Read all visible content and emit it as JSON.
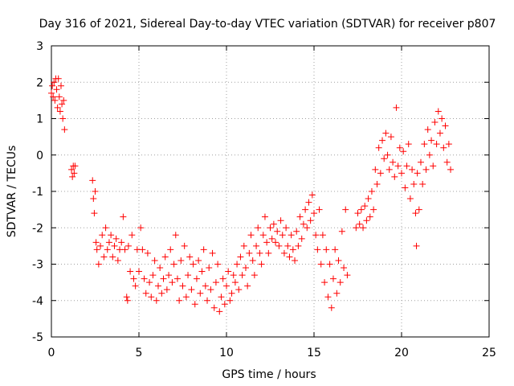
{
  "chart_data": {
    "type": "scatter",
    "title": "Day 316 of 2021, Sidereal Day-to-day VTEC variation (SDTVAR) for receiver p807",
    "xlabel": "GPS time / hours",
    "ylabel": "SDTVAR / TECUs",
    "xlim": [
      0,
      25
    ],
    "ylim": [
      -5,
      3
    ],
    "xticks": [
      0,
      5,
      10,
      15,
      20,
      25
    ],
    "yticks": [
      -5,
      -4,
      -3,
      -2,
      -1,
      0,
      1,
      2,
      3
    ],
    "grid": true,
    "marker": "+",
    "color": "#ff0000",
    "series": [
      {
        "name": "SDTVAR",
        "points": [
          [
            0.0,
            1.7
          ],
          [
            0.05,
            1.9
          ],
          [
            0.1,
            1.6
          ],
          [
            0.15,
            2.0
          ],
          [
            0.2,
            1.5
          ],
          [
            0.25,
            2.1
          ],
          [
            0.3,
            1.8
          ],
          [
            0.35,
            1.3
          ],
          [
            0.4,
            2.1
          ],
          [
            0.45,
            1.6
          ],
          [
            0.5,
            1.2
          ],
          [
            0.55,
            1.9
          ],
          [
            0.6,
            1.4
          ],
          [
            0.65,
            1.0
          ],
          [
            0.7,
            1.5
          ],
          [
            0.75,
            0.7
          ],
          [
            1.15,
            -0.4
          ],
          [
            1.2,
            -0.6
          ],
          [
            1.25,
            -0.3
          ],
          [
            1.3,
            -0.5
          ],
          [
            1.35,
            -0.3
          ],
          [
            2.35,
            -0.7
          ],
          [
            2.4,
            -1.2
          ],
          [
            2.45,
            -1.6
          ],
          [
            2.5,
            -1.0
          ],
          [
            2.55,
            -2.4
          ],
          [
            2.6,
            -2.6
          ],
          [
            2.7,
            -3.0
          ],
          [
            2.8,
            -2.5
          ],
          [
            2.9,
            -2.2
          ],
          [
            3.0,
            -2.8
          ],
          [
            3.1,
            -2.0
          ],
          [
            3.2,
            -2.6
          ],
          [
            3.3,
            -2.4
          ],
          [
            3.4,
            -2.2
          ],
          [
            3.5,
            -2.8
          ],
          [
            3.6,
            -2.5
          ],
          [
            3.7,
            -2.3
          ],
          [
            3.8,
            -2.9
          ],
          [
            3.9,
            -2.6
          ],
          [
            4.0,
            -2.4
          ],
          [
            4.1,
            -1.7
          ],
          [
            4.2,
            -2.6
          ],
          [
            4.3,
            -3.9
          ],
          [
            4.35,
            -4.0
          ],
          [
            4.4,
            -2.5
          ],
          [
            4.5,
            -3.2
          ],
          [
            4.6,
            -2.2
          ],
          [
            4.7,
            -3.4
          ],
          [
            4.8,
            -3.6
          ],
          [
            4.9,
            -2.6
          ],
          [
            5.0,
            -3.2
          ],
          [
            5.1,
            -2.0
          ],
          [
            5.2,
            -2.6
          ],
          [
            5.3,
            -3.4
          ],
          [
            5.4,
            -3.8
          ],
          [
            5.5,
            -2.7
          ],
          [
            5.6,
            -3.5
          ],
          [
            5.7,
            -3.9
          ],
          [
            5.8,
            -3.3
          ],
          [
            5.9,
            -2.9
          ],
          [
            6.0,
            -4.0
          ],
          [
            6.1,
            -3.6
          ],
          [
            6.2,
            -3.1
          ],
          [
            6.3,
            -3.8
          ],
          [
            6.4,
            -3.4
          ],
          [
            6.5,
            -2.8
          ],
          [
            6.6,
            -3.7
          ],
          [
            6.7,
            -3.3
          ],
          [
            6.8,
            -2.6
          ],
          [
            6.9,
            -3.5
          ],
          [
            7.0,
            -3.0
          ],
          [
            7.1,
            -2.2
          ],
          [
            7.2,
            -3.4
          ],
          [
            7.3,
            -4.0
          ],
          [
            7.4,
            -2.9
          ],
          [
            7.5,
            -3.6
          ],
          [
            7.6,
            -2.5
          ],
          [
            7.7,
            -3.9
          ],
          [
            7.8,
            -3.3
          ],
          [
            7.9,
            -2.8
          ],
          [
            8.0,
            -3.7
          ],
          [
            8.1,
            -3.0
          ],
          [
            8.2,
            -4.1
          ],
          [
            8.3,
            -3.4
          ],
          [
            8.4,
            -2.9
          ],
          [
            8.5,
            -3.8
          ],
          [
            8.6,
            -3.2
          ],
          [
            8.7,
            -2.6
          ],
          [
            8.8,
            -3.6
          ],
          [
            8.9,
            -4.0
          ],
          [
            9.0,
            -3.1
          ],
          [
            9.1,
            -3.7
          ],
          [
            9.2,
            -2.7
          ],
          [
            9.3,
            -4.2
          ],
          [
            9.4,
            -3.5
          ],
          [
            9.5,
            -3.0
          ],
          [
            9.6,
            -4.3
          ],
          [
            9.7,
            -3.9
          ],
          [
            9.8,
            -3.4
          ],
          [
            9.9,
            -4.1
          ],
          [
            10.0,
            -3.6
          ],
          [
            10.1,
            -3.2
          ],
          [
            10.2,
            -4.0
          ],
          [
            10.3,
            -3.8
          ],
          [
            10.4,
            -3.3
          ],
          [
            10.5,
            -3.5
          ],
          [
            10.6,
            -3.0
          ],
          [
            10.7,
            -3.7
          ],
          [
            10.8,
            -2.8
          ],
          [
            10.9,
            -3.3
          ],
          [
            11.0,
            -2.5
          ],
          [
            11.1,
            -3.1
          ],
          [
            11.2,
            -3.6
          ],
          [
            11.3,
            -2.7
          ],
          [
            11.4,
            -2.2
          ],
          [
            11.5,
            -2.9
          ],
          [
            11.6,
            -3.3
          ],
          [
            11.7,
            -2.5
          ],
          [
            11.8,
            -2.0
          ],
          [
            11.9,
            -2.7
          ],
          [
            12.0,
            -3.0
          ],
          [
            12.1,
            -2.2
          ],
          [
            12.2,
            -1.7
          ],
          [
            12.3,
            -2.4
          ],
          [
            12.4,
            -2.7
          ],
          [
            12.5,
            -2.0
          ],
          [
            12.6,
            -2.3
          ],
          [
            12.7,
            -1.9
          ],
          [
            12.8,
            -2.4
          ],
          [
            12.9,
            -2.1
          ],
          [
            13.0,
            -2.5
          ],
          [
            13.1,
            -1.8
          ],
          [
            13.2,
            -2.2
          ],
          [
            13.3,
            -2.7
          ],
          [
            13.4,
            -2.0
          ],
          [
            13.5,
            -2.5
          ],
          [
            13.6,
            -2.8
          ],
          [
            13.7,
            -2.2
          ],
          [
            13.8,
            -2.6
          ],
          [
            13.9,
            -2.9
          ],
          [
            14.0,
            -2.1
          ],
          [
            14.1,
            -2.5
          ],
          [
            14.2,
            -1.7
          ],
          [
            14.3,
            -2.3
          ],
          [
            14.4,
            -1.9
          ],
          [
            14.5,
            -1.5
          ],
          [
            14.6,
            -2.0
          ],
          [
            14.7,
            -1.3
          ],
          [
            14.8,
            -1.8
          ],
          [
            14.9,
            -1.1
          ],
          [
            15.0,
            -1.6
          ],
          [
            15.1,
            -2.2
          ],
          [
            15.2,
            -2.6
          ],
          [
            15.3,
            -1.5
          ],
          [
            15.4,
            -3.0
          ],
          [
            15.5,
            -2.2
          ],
          [
            15.6,
            -3.5
          ],
          [
            15.7,
            -2.6
          ],
          [
            15.8,
            -3.9
          ],
          [
            15.9,
            -3.0
          ],
          [
            16.0,
            -4.2
          ],
          [
            16.1,
            -3.4
          ],
          [
            16.2,
            -2.6
          ],
          [
            16.3,
            -3.8
          ],
          [
            16.4,
            -2.9
          ],
          [
            16.5,
            -3.5
          ],
          [
            16.6,
            -2.1
          ],
          [
            16.7,
            -3.1
          ],
          [
            16.8,
            -1.5
          ],
          [
            16.9,
            -3.3
          ],
          [
            17.4,
            -2.0
          ],
          [
            17.5,
            -1.6
          ],
          [
            17.6,
            -1.9
          ],
          [
            17.7,
            -1.5
          ],
          [
            17.8,
            -2.0
          ],
          [
            17.9,
            -1.4
          ],
          [
            18.0,
            -1.8
          ],
          [
            18.1,
            -1.2
          ],
          [
            18.2,
            -1.7
          ],
          [
            18.3,
            -1.0
          ],
          [
            18.4,
            -1.5
          ],
          [
            18.5,
            -0.4
          ],
          [
            18.6,
            -0.8
          ],
          [
            18.7,
            0.2
          ],
          [
            18.8,
            -0.5
          ],
          [
            18.9,
            0.4
          ],
          [
            19.0,
            -0.1
          ],
          [
            19.1,
            0.6
          ],
          [
            19.2,
            0.0
          ],
          [
            19.3,
            -0.4
          ],
          [
            19.4,
            0.5
          ],
          [
            19.5,
            -0.2
          ],
          [
            19.6,
            -0.6
          ],
          [
            19.7,
            1.3
          ],
          [
            19.8,
            -0.3
          ],
          [
            19.9,
            0.2
          ],
          [
            20.0,
            -0.5
          ],
          [
            20.1,
            0.1
          ],
          [
            20.2,
            -0.9
          ],
          [
            20.3,
            -0.3
          ],
          [
            20.4,
            0.3
          ],
          [
            20.5,
            -1.2
          ],
          [
            20.6,
            -0.4
          ],
          [
            20.7,
            -0.8
          ],
          [
            20.8,
            -1.6
          ],
          [
            20.85,
            -2.5
          ],
          [
            20.9,
            -0.5
          ],
          [
            21.0,
            -1.5
          ],
          [
            21.1,
            -0.2
          ],
          [
            21.2,
            -0.8
          ],
          [
            21.3,
            0.3
          ],
          [
            21.4,
            -0.4
          ],
          [
            21.5,
            0.7
          ],
          [
            21.6,
            0.0
          ],
          [
            21.7,
            0.4
          ],
          [
            21.8,
            -0.3
          ],
          [
            21.9,
            0.9
          ],
          [
            22.0,
            0.3
          ],
          [
            22.1,
            1.2
          ],
          [
            22.2,
            0.6
          ],
          [
            22.3,
            1.0
          ],
          [
            22.4,
            0.2
          ],
          [
            22.5,
            0.8
          ],
          [
            22.6,
            -0.2
          ],
          [
            22.7,
            0.3
          ],
          [
            22.8,
            -0.4
          ]
        ]
      }
    ]
  }
}
